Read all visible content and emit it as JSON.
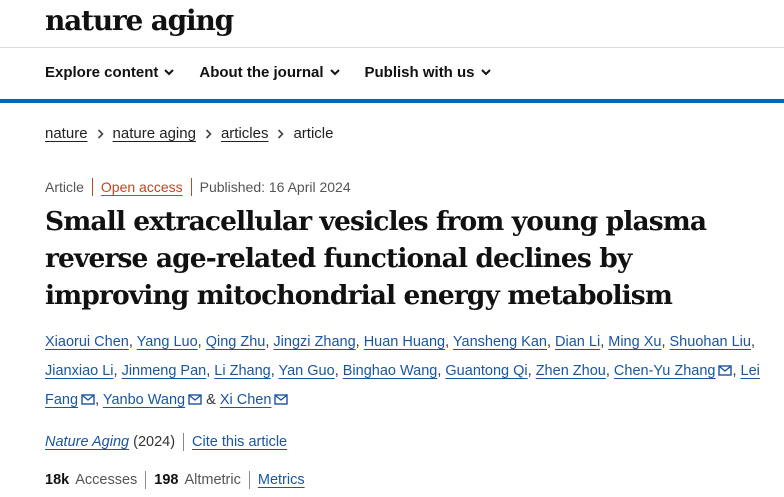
{
  "header": {
    "logo": "nature aging",
    "nav": [
      "Explore content",
      "About the journal",
      "Publish with us"
    ]
  },
  "breadcrumb": {
    "items": [
      "nature",
      "nature aging",
      "articles"
    ],
    "current": "article"
  },
  "meta": {
    "type": "Article",
    "access": "Open access",
    "published": "Published: 16 April 2024"
  },
  "article": {
    "title": "Small extracellular vesicles from young plasma reverse age-related functional declines by improving mitochondrial energy metabolism"
  },
  "authors": [
    {
      "name": "Xiaorui Chen",
      "mail": false
    },
    {
      "name": "Yang Luo",
      "mail": false
    },
    {
      "name": "Qing Zhu",
      "mail": false
    },
    {
      "name": "Jingzi Zhang",
      "mail": false
    },
    {
      "name": "Huan Huang",
      "mail": false
    },
    {
      "name": "Yansheng Kan",
      "mail": false
    },
    {
      "name": "Dian Li",
      "mail": false
    },
    {
      "name": "Ming Xu",
      "mail": false
    },
    {
      "name": "Shuohan Liu",
      "mail": false
    },
    {
      "name": "Jianxiao Li",
      "mail": false
    },
    {
      "name": "Jinmeng Pan",
      "mail": false
    },
    {
      "name": "Li Zhang",
      "mail": false
    },
    {
      "name": "Yan Guo",
      "mail": false
    },
    {
      "name": "Binghao Wang",
      "mail": false
    },
    {
      "name": "Guantong Qi",
      "mail": false
    },
    {
      "name": "Zhen Zhou",
      "mail": false
    },
    {
      "name": "Chen-Yu Zhang",
      "mail": true
    },
    {
      "name": "Lei Fang",
      "mail": true
    },
    {
      "name": "Yanbo Wang",
      "mail": true
    },
    {
      "name": "Xi Chen",
      "mail": true
    }
  ],
  "authors_and": "&",
  "journal": {
    "name": "Nature Aging",
    "year": "(2024)",
    "cite": "Cite this article"
  },
  "metrics": {
    "accesses_value": "18k",
    "accesses_label": "Accesses",
    "altmetric_value": "198",
    "altmetric_label": "Altmetric",
    "metrics_link": "Metrics"
  },
  "colors": {
    "accent_blue": "#0069b4",
    "link_blue": "#1a56a0",
    "open_access": "#c2461e"
  },
  "icons": {
    "nav_chevron": "chevron-down-icon",
    "breadcrumb_separator": "chevron-right-icon",
    "author_contact": "mail-icon"
  }
}
